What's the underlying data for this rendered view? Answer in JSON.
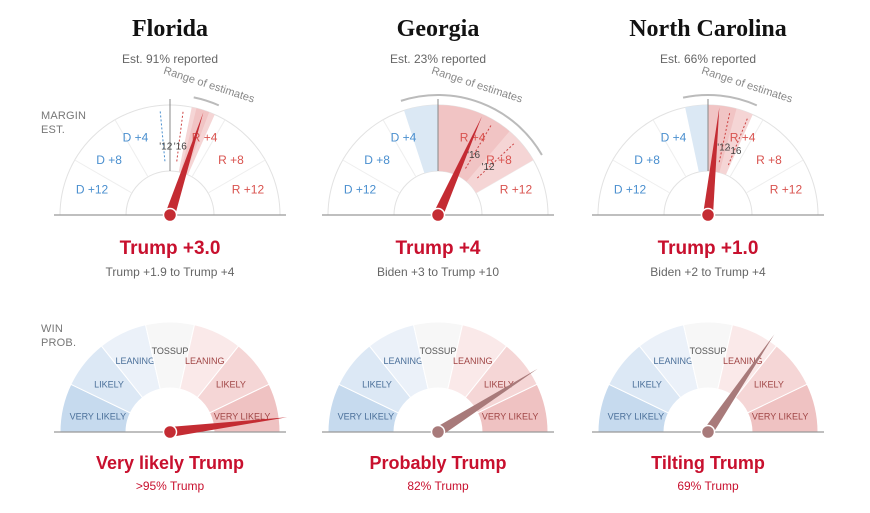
{
  "side_labels": {
    "margin_line1": "MARGIN",
    "margin_line2": "EST.",
    "win_line1": "WIN",
    "win_line2": "PROB."
  },
  "colors": {
    "trump_red": "#c8102e",
    "biden_blue": "#4a8fcf",
    "needle_red": "#c42c33",
    "needle_muted": "#a87a7a",
    "grey_text": "#666666"
  },
  "chart_data": [
    {
      "type": "gauge",
      "state": "Florida",
      "reported": "Est. 91% reported",
      "margin_scale": {
        "range": [
          -15,
          15
        ],
        "ticks": [
          "D +12",
          "D +8",
          "D +4",
          "R +4",
          "R +8",
          "R +12"
        ]
      },
      "range_label": "Range of estimates",
      "margin_estimate": 3.0,
      "estimate_range": [
        1.9,
        4
      ],
      "past_markers": [
        {
          "label": "'12",
          "value": -0.9
        },
        {
          "label": "'16",
          "value": 1.2
        }
      ],
      "margin_text": "Trump +3.0",
      "range_text": "Trump +1.9 to Trump +4",
      "win_zones": [
        "VERY LIKELY",
        "LIKELY",
        "LEANING",
        "TOSSUP",
        "LEANING",
        "LIKELY",
        "VERY LIKELY"
      ],
      "win_probability_trump": 0.96,
      "win_text": "Very likely Trump",
      "win_pct_text": ">95% Trump",
      "needle_style": "strong"
    },
    {
      "type": "gauge",
      "state": "Georgia",
      "reported": "Est. 23% reported",
      "margin_scale": {
        "range": [
          -15,
          15
        ],
        "ticks": [
          "D +12",
          "D +8",
          "D +4",
          "R +4",
          "R +8",
          "R +12"
        ]
      },
      "range_label": "Range of estimates",
      "margin_estimate": 4,
      "estimate_range": [
        -3,
        10
      ],
      "past_markers": [
        {
          "label": "'16",
          "value": 5.1
        },
        {
          "label": "'12",
          "value": 7.8
        }
      ],
      "margin_text": "Trump +4",
      "range_text": "Biden +3 to Trump +10",
      "win_zones": [
        "VERY LIKELY",
        "LIKELY",
        "LEANING",
        "TOSSUP",
        "LEANING",
        "LIKELY",
        "VERY LIKELY"
      ],
      "win_probability_trump": 0.82,
      "win_text": "Probably Trump",
      "win_pct_text": "82% Trump",
      "needle_style": "muted"
    },
    {
      "type": "gauge",
      "state": "North Carolina",
      "reported": "Est. 66% reported",
      "margin_scale": {
        "range": [
          -15,
          15
        ],
        "ticks": [
          "D +12",
          "D +8",
          "D +4",
          "R +4",
          "R +8",
          "R +12"
        ]
      },
      "range_label": "Range of estimates",
      "margin_estimate": 1.0,
      "estimate_range": [
        -2,
        4
      ],
      "past_markers": [
        {
          "label": "'12",
          "value": 2.0
        },
        {
          "label": "'16",
          "value": 3.7
        }
      ],
      "margin_text": "Trump +1.0",
      "range_text": "Biden +2 to Trump +4",
      "win_zones": [
        "VERY LIKELY",
        "LIKELY",
        "LEANING",
        "TOSSUP",
        "LEANING",
        "LIKELY",
        "VERY LIKELY"
      ],
      "win_probability_trump": 0.69,
      "win_text": "Tilting Trump",
      "win_pct_text": "69% Trump",
      "needle_style": "muted"
    }
  ]
}
